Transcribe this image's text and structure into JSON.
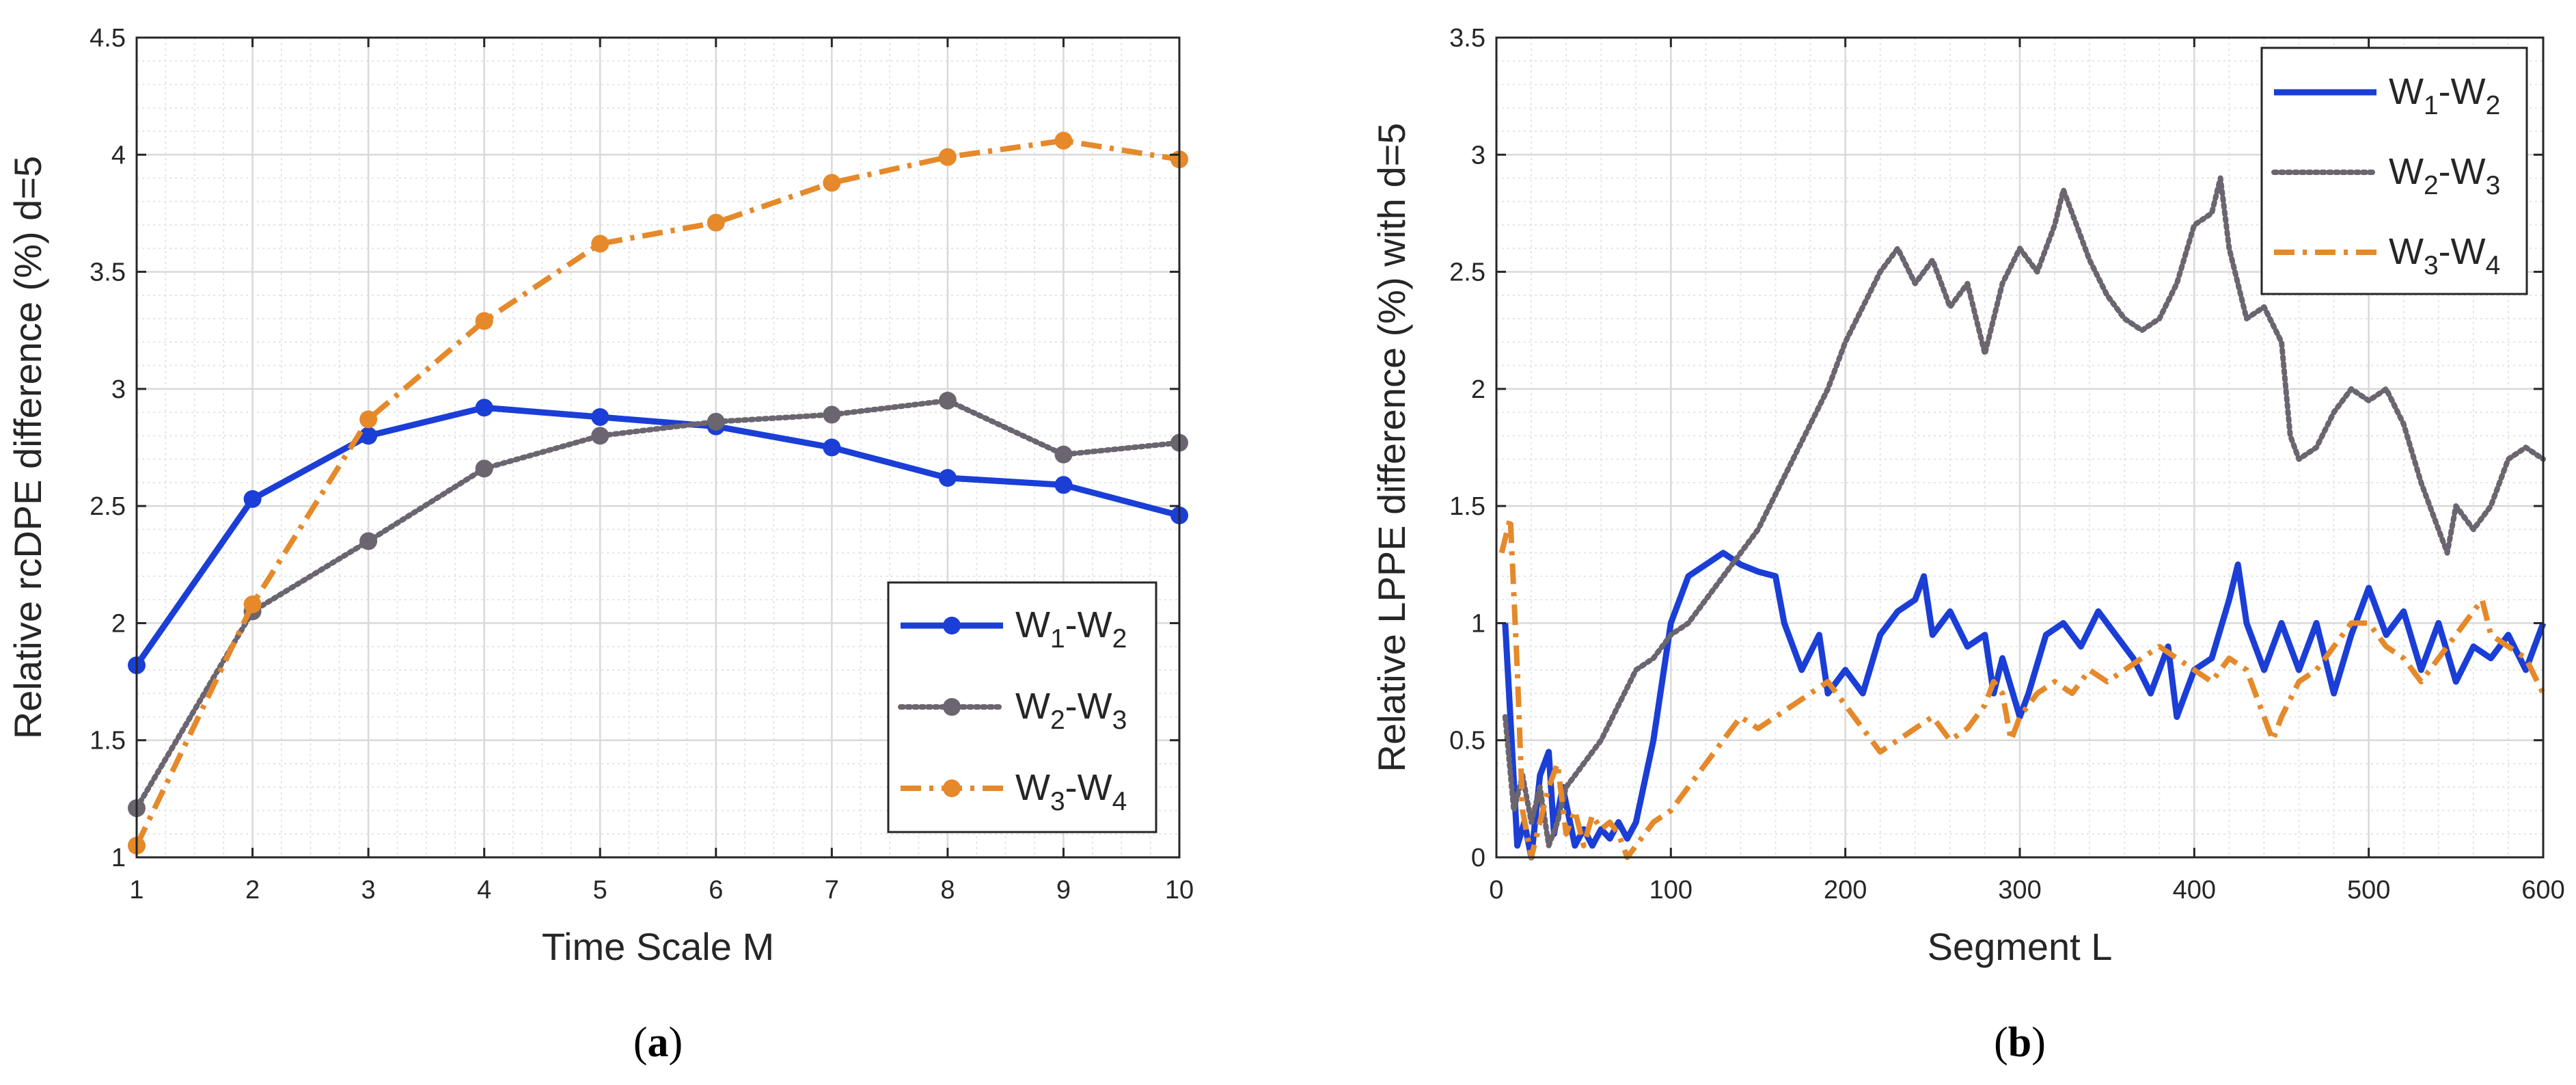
{
  "colors": {
    "w12": "#1a3ed6",
    "w23": "#6b6570",
    "w34": "#e5892a",
    "grid_major": "#d9d9d9",
    "grid_minor": "#e4e4e4",
    "axis": "#262626"
  },
  "chart_data": [
    {
      "type": "line",
      "panel_label": "a",
      "xlabel": "Time Scale M",
      "ylabel": "Relative rcDPE difference (%) d=5",
      "xlim": [
        1,
        10
      ],
      "ylim": [
        1,
        4.5
      ],
      "xticks": [
        "1",
        "2",
        "3",
        "4",
        "5",
        "6",
        "7",
        "8",
        "9",
        "10"
      ],
      "yticks": [
        "1",
        "1.5",
        "2",
        "2.5",
        "3",
        "3.5",
        "4",
        "4.5"
      ],
      "legend_position": "bottom-right",
      "x": [
        1,
        2,
        3,
        4,
        5,
        6,
        7,
        8,
        9,
        10
      ],
      "series": [
        {
          "name": "W1-W2",
          "base1": "W",
          "sub1": "1",
          "base2": "W",
          "sub2": "2",
          "style": "solid",
          "values": [
            1.82,
            2.53,
            2.8,
            2.92,
            2.88,
            2.84,
            2.75,
            2.62,
            2.59,
            2.46
          ]
        },
        {
          "name": "W2-W3",
          "base1": "W",
          "sub1": "2",
          "base2": "W",
          "sub2": "3",
          "style": "dotted",
          "values": [
            1.21,
            2.05,
            2.35,
            2.66,
            2.8,
            2.86,
            2.89,
            2.95,
            2.72,
            2.77
          ]
        },
        {
          "name": "W3-W4",
          "base1": "W",
          "sub1": "3",
          "base2": "W",
          "sub2": "4",
          "style": "dashdot",
          "values": [
            1.05,
            2.08,
            2.87,
            3.29,
            3.62,
            3.71,
            3.88,
            3.99,
            4.06,
            3.98
          ]
        }
      ]
    },
    {
      "type": "line",
      "panel_label": "b",
      "xlabel": "Segment L",
      "ylabel": "Relative LPPE difference (%) with d=5",
      "xlim": [
        0,
        600
      ],
      "ylim": [
        0,
        3.5
      ],
      "xticks": [
        "0",
        "100",
        "200",
        "300",
        "400",
        "500",
        "600"
      ],
      "yticks": [
        "0",
        "0.5",
        "1",
        "1.5",
        "2",
        "2.5",
        "3",
        "3.5"
      ],
      "legend_position": "top-right",
      "series": [
        {
          "name": "W1-W2",
          "base1": "W",
          "sub1": "1",
          "base2": "W",
          "sub2": "2",
          "style": "solid",
          "points": [
            [
              5,
              1.0
            ],
            [
              8,
              0.6
            ],
            [
              12,
              0.05
            ],
            [
              16,
              0.15
            ],
            [
              20,
              0.0
            ],
            [
              25,
              0.35
            ],
            [
              30,
              0.45
            ],
            [
              33,
              0.1
            ],
            [
              38,
              0.3
            ],
            [
              45,
              0.05
            ],
            [
              50,
              0.12
            ],
            [
              55,
              0.05
            ],
            [
              60,
              0.12
            ],
            [
              65,
              0.08
            ],
            [
              70,
              0.15
            ],
            [
              75,
              0.08
            ],
            [
              80,
              0.15
            ],
            [
              90,
              0.5
            ],
            [
              100,
              1.0
            ],
            [
              110,
              1.2
            ],
            [
              120,
              1.25
            ],
            [
              130,
              1.3
            ],
            [
              140,
              1.25
            ],
            [
              150,
              1.22
            ],
            [
              160,
              1.2
            ],
            [
              165,
              1.0
            ],
            [
              175,
              0.8
            ],
            [
              185,
              0.95
            ],
            [
              190,
              0.7
            ],
            [
              200,
              0.8
            ],
            [
              210,
              0.7
            ],
            [
              220,
              0.95
            ],
            [
              230,
              1.05
            ],
            [
              240,
              1.1
            ],
            [
              245,
              1.2
            ],
            [
              250,
              0.95
            ],
            [
              260,
              1.05
            ],
            [
              270,
              0.9
            ],
            [
              280,
              0.95
            ],
            [
              285,
              0.7
            ],
            [
              290,
              0.85
            ],
            [
              300,
              0.6
            ],
            [
              305,
              0.7
            ],
            [
              315,
              0.95
            ],
            [
              325,
              1.0
            ],
            [
              335,
              0.9
            ],
            [
              345,
              1.05
            ],
            [
              355,
              0.95
            ],
            [
              365,
              0.85
            ],
            [
              375,
              0.7
            ],
            [
              385,
              0.9
            ],
            [
              390,
              0.6
            ],
            [
              400,
              0.8
            ],
            [
              410,
              0.85
            ],
            [
              420,
              1.1
            ],
            [
              425,
              1.25
            ],
            [
              430,
              1.0
            ],
            [
              440,
              0.8
            ],
            [
              450,
              1.0
            ],
            [
              460,
              0.8
            ],
            [
              470,
              1.0
            ],
            [
              480,
              0.7
            ],
            [
              490,
              0.95
            ],
            [
              500,
              1.15
            ],
            [
              510,
              0.95
            ],
            [
              520,
              1.05
            ],
            [
              530,
              0.8
            ],
            [
              540,
              1.0
            ],
            [
              550,
              0.75
            ],
            [
              560,
              0.9
            ],
            [
              570,
              0.85
            ],
            [
              580,
              0.95
            ],
            [
              590,
              0.8
            ],
            [
              600,
              1.0
            ]
          ]
        },
        {
          "name": "W2-W3",
          "base1": "W",
          "sub1": "2",
          "base2": "W",
          "sub2": "3",
          "style": "dotted",
          "points": [
            [
              5,
              0.6
            ],
            [
              10,
              0.2
            ],
            [
              15,
              0.35
            ],
            [
              20,
              0.15
            ],
            [
              25,
              0.3
            ],
            [
              30,
              0.05
            ],
            [
              35,
              0.15
            ],
            [
              40,
              0.3
            ],
            [
              50,
              0.4
            ],
            [
              60,
              0.5
            ],
            [
              70,
              0.65
            ],
            [
              80,
              0.8
            ],
            [
              90,
              0.85
            ],
            [
              100,
              0.95
            ],
            [
              110,
              1.0
            ],
            [
              120,
              1.1
            ],
            [
              130,
              1.2
            ],
            [
              140,
              1.3
            ],
            [
              150,
              1.4
            ],
            [
              160,
              1.55
            ],
            [
              170,
              1.7
            ],
            [
              180,
              1.85
            ],
            [
              190,
              2.0
            ],
            [
              200,
              2.2
            ],
            [
              210,
              2.35
            ],
            [
              220,
              2.5
            ],
            [
              230,
              2.6
            ],
            [
              240,
              2.45
            ],
            [
              250,
              2.55
            ],
            [
              260,
              2.35
            ],
            [
              270,
              2.45
            ],
            [
              280,
              2.15
            ],
            [
              290,
              2.45
            ],
            [
              300,
              2.6
            ],
            [
              310,
              2.5
            ],
            [
              320,
              2.7
            ],
            [
              325,
              2.85
            ],
            [
              330,
              2.75
            ],
            [
              340,
              2.55
            ],
            [
              350,
              2.4
            ],
            [
              360,
              2.3
            ],
            [
              370,
              2.25
            ],
            [
              380,
              2.3
            ],
            [
              390,
              2.45
            ],
            [
              400,
              2.7
            ],
            [
              410,
              2.75
            ],
            [
              415,
              2.9
            ],
            [
              420,
              2.6
            ],
            [
              430,
              2.3
            ],
            [
              440,
              2.35
            ],
            [
              450,
              2.2
            ],
            [
              455,
              1.8
            ],
            [
              460,
              1.7
            ],
            [
              470,
              1.75
            ],
            [
              480,
              1.9
            ],
            [
              490,
              2.0
            ],
            [
              500,
              1.95
            ],
            [
              510,
              2.0
            ],
            [
              520,
              1.85
            ],
            [
              530,
              1.6
            ],
            [
              540,
              1.4
            ],
            [
              545,
              1.3
            ],
            [
              550,
              1.5
            ],
            [
              560,
              1.4
            ],
            [
              570,
              1.5
            ],
            [
              580,
              1.7
            ],
            [
              590,
              1.75
            ],
            [
              600,
              1.7
            ]
          ]
        },
        {
          "name": "W3-W4",
          "base1": "W",
          "sub1": "3",
          "base2": "W",
          "sub2": "4",
          "style": "dashdot",
          "points": [
            [
              3,
              1.3
            ],
            [
              8,
              1.45
            ],
            [
              12,
              0.8
            ],
            [
              15,
              0.2
            ],
            [
              20,
              0.0
            ],
            [
              25,
              0.15
            ],
            [
              30,
              0.3
            ],
            [
              35,
              0.4
            ],
            [
              40,
              0.1
            ],
            [
              45,
              0.2
            ],
            [
              50,
              0.05
            ],
            [
              55,
              0.18
            ],
            [
              60,
              0.12
            ],
            [
              65,
              0.15
            ],
            [
              70,
              0.1
            ],
            [
              75,
              0.0
            ],
            [
              80,
              0.05
            ],
            [
              90,
              0.15
            ],
            [
              100,
              0.2
            ],
            [
              110,
              0.3
            ],
            [
              120,
              0.4
            ],
            [
              130,
              0.5
            ],
            [
              140,
              0.6
            ],
            [
              150,
              0.55
            ],
            [
              160,
              0.6
            ],
            [
              170,
              0.65
            ],
            [
              180,
              0.7
            ],
            [
              190,
              0.75
            ],
            [
              200,
              0.65
            ],
            [
              210,
              0.55
            ],
            [
              220,
              0.45
            ],
            [
              230,
              0.5
            ],
            [
              240,
              0.55
            ],
            [
              250,
              0.6
            ],
            [
              260,
              0.5
            ],
            [
              270,
              0.55
            ],
            [
              280,
              0.65
            ],
            [
              285,
              0.75
            ],
            [
              290,
              0.7
            ],
            [
              295,
              0.5
            ],
            [
              300,
              0.6
            ],
            [
              310,
              0.7
            ],
            [
              320,
              0.75
            ],
            [
              330,
              0.7
            ],
            [
              340,
              0.8
            ],
            [
              350,
              0.75
            ],
            [
              360,
              0.8
            ],
            [
              370,
              0.85
            ],
            [
              380,
              0.9
            ],
            [
              390,
              0.85
            ],
            [
              400,
              0.8
            ],
            [
              410,
              0.75
            ],
            [
              420,
              0.85
            ],
            [
              430,
              0.8
            ],
            [
              440,
              0.6
            ],
            [
              445,
              0.5
            ],
            [
              450,
              0.6
            ],
            [
              460,
              0.75
            ],
            [
              470,
              0.8
            ],
            [
              480,
              0.9
            ],
            [
              490,
              1.0
            ],
            [
              500,
              1.0
            ],
            [
              510,
              0.9
            ],
            [
              520,
              0.85
            ],
            [
              530,
              0.75
            ],
            [
              540,
              0.85
            ],
            [
              550,
              0.95
            ],
            [
              560,
              1.05
            ],
            [
              565,
              1.1
            ],
            [
              570,
              0.95
            ],
            [
              580,
              0.9
            ],
            [
              590,
              0.85
            ],
            [
              600,
              0.7
            ]
          ]
        }
      ]
    }
  ]
}
